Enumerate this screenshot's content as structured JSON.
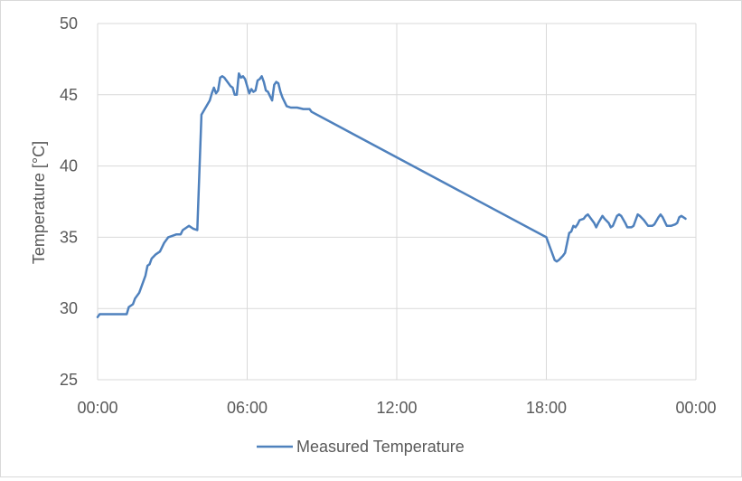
{
  "chart_data": {
    "type": "line",
    "title": "",
    "xlabel": "",
    "ylabel": "Temperature [°C]",
    "ylim": [
      25,
      50
    ],
    "y_ticks": [
      "25",
      "30",
      "35",
      "40",
      "45",
      "50"
    ],
    "xlim": [
      "00:00",
      "24:00"
    ],
    "x_ticks": [
      "00:00",
      "06:00",
      "12:00",
      "18:00",
      "00:00"
    ],
    "grid": true,
    "legend": "bottom",
    "series": [
      {
        "name": "Measured Temperature",
        "color": "#4f81bd",
        "points": [
          [
            "00:00",
            29.4
          ],
          [
            "00:05",
            29.6
          ],
          [
            "00:30",
            29.6
          ],
          [
            "00:55",
            29.6
          ],
          [
            "01:10",
            29.6
          ],
          [
            "01:15",
            30.1
          ],
          [
            "01:25",
            30.3
          ],
          [
            "01:30",
            30.7
          ],
          [
            "01:40",
            31.1
          ],
          [
            "01:50",
            31.9
          ],
          [
            "01:55",
            32.3
          ],
          [
            "02:00",
            33.0
          ],
          [
            "02:05",
            33.1
          ],
          [
            "02:10",
            33.5
          ],
          [
            "02:20",
            33.8
          ],
          [
            "02:30",
            34.0
          ],
          [
            "02:35",
            34.3
          ],
          [
            "02:40",
            34.6
          ],
          [
            "02:50",
            35.0
          ],
          [
            "03:00",
            35.1
          ],
          [
            "03:10",
            35.2
          ],
          [
            "03:20",
            35.2
          ],
          [
            "03:25",
            35.5
          ],
          [
            "03:35",
            35.7
          ],
          [
            "03:40",
            35.8
          ],
          [
            "03:50",
            35.6
          ],
          [
            "04:00",
            35.5
          ],
          [
            "04:10",
            43.6
          ],
          [
            "04:20",
            44.1
          ],
          [
            "04:30",
            44.6
          ],
          [
            "04:35",
            45.1
          ],
          [
            "04:40",
            45.5
          ],
          [
            "04:45",
            45.1
          ],
          [
            "04:50",
            45.3
          ],
          [
            "04:55",
            46.2
          ],
          [
            "05:00",
            46.3
          ],
          [
            "05:05",
            46.2
          ],
          [
            "05:10",
            46.0
          ],
          [
            "05:20",
            45.6
          ],
          [
            "05:25",
            45.5
          ],
          [
            "05:30",
            45.0
          ],
          [
            "05:35",
            45.0
          ],
          [
            "05:40",
            46.5
          ],
          [
            "05:45",
            46.2
          ],
          [
            "05:50",
            46.3
          ],
          [
            "05:55",
            46.1
          ],
          [
            "06:00",
            45.6
          ],
          [
            "06:05",
            45.1
          ],
          [
            "06:10",
            45.4
          ],
          [
            "06:15",
            45.2
          ],
          [
            "06:20",
            45.3
          ],
          [
            "06:25",
            46.0
          ],
          [
            "06:30",
            46.1
          ],
          [
            "06:35",
            46.3
          ],
          [
            "06:40",
            45.9
          ],
          [
            "06:45",
            45.3
          ],
          [
            "06:50",
            45.2
          ],
          [
            "06:55",
            44.9
          ],
          [
            "07:00",
            44.6
          ],
          [
            "07:05",
            45.7
          ],
          [
            "07:10",
            45.9
          ],
          [
            "07:15",
            45.8
          ],
          [
            "07:20",
            45.2
          ],
          [
            "07:25",
            44.8
          ],
          [
            "07:30",
            44.5
          ],
          [
            "07:35",
            44.2
          ],
          [
            "07:45",
            44.1
          ],
          [
            "08:00",
            44.1
          ],
          [
            "08:15",
            44.0
          ],
          [
            "08:30",
            44.0
          ],
          [
            "08:35",
            43.8
          ],
          [
            "18:00",
            35.0
          ],
          [
            "18:10",
            34.2
          ],
          [
            "18:20",
            33.4
          ],
          [
            "18:25",
            33.3
          ],
          [
            "18:30",
            33.4
          ],
          [
            "18:40",
            33.7
          ],
          [
            "18:45",
            33.9
          ],
          [
            "18:50",
            34.6
          ],
          [
            "18:55",
            35.3
          ],
          [
            "19:00",
            35.4
          ],
          [
            "19:05",
            35.8
          ],
          [
            "19:10",
            35.7
          ],
          [
            "19:15",
            35.9
          ],
          [
            "19:20",
            36.2
          ],
          [
            "19:30",
            36.3
          ],
          [
            "19:35",
            36.5
          ],
          [
            "19:40",
            36.6
          ],
          [
            "19:50",
            36.2
          ],
          [
            "19:55",
            36.0
          ],
          [
            "20:00",
            35.7
          ],
          [
            "20:05",
            36.0
          ],
          [
            "20:15",
            36.5
          ],
          [
            "20:20",
            36.3
          ],
          [
            "20:30",
            36.0
          ],
          [
            "20:35",
            35.7
          ],
          [
            "20:40",
            35.8
          ],
          [
            "20:50",
            36.5
          ],
          [
            "20:55",
            36.6
          ],
          [
            "21:00",
            36.5
          ],
          [
            "21:10",
            36.0
          ],
          [
            "21:15",
            35.7
          ],
          [
            "21:25",
            35.7
          ],
          [
            "21:30",
            35.8
          ],
          [
            "21:35",
            36.2
          ],
          [
            "21:40",
            36.6
          ],
          [
            "21:45",
            36.5
          ],
          [
            "21:55",
            36.2
          ],
          [
            "22:05",
            35.8
          ],
          [
            "22:15",
            35.8
          ],
          [
            "22:20",
            35.9
          ],
          [
            "22:30",
            36.4
          ],
          [
            "22:35",
            36.6
          ],
          [
            "22:40",
            36.4
          ],
          [
            "22:45",
            36.1
          ],
          [
            "22:50",
            35.8
          ],
          [
            "23:00",
            35.8
          ],
          [
            "23:10",
            35.9
          ],
          [
            "23:15",
            36.0
          ],
          [
            "23:20",
            36.4
          ],
          [
            "23:25",
            36.5
          ],
          [
            "23:30",
            36.4
          ],
          [
            "23:35",
            36.3
          ]
        ]
      }
    ]
  }
}
